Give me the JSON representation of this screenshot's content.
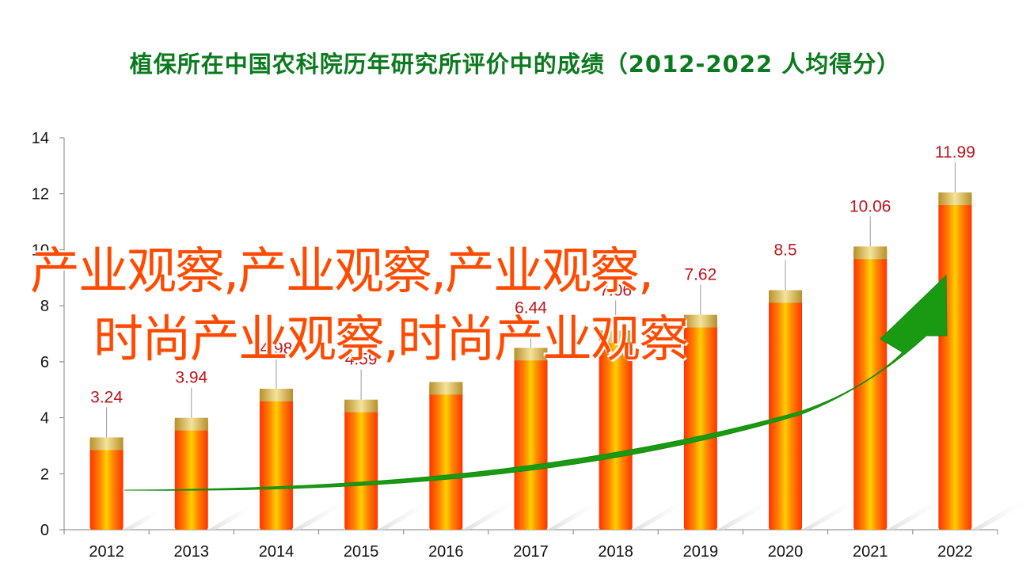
{
  "colors": {
    "title": "#0b7a1e",
    "bar_main": "#ff3a00",
    "bar_highlight": "#ffc400",
    "cap": "#d8b23a",
    "data_label": "#c0141b",
    "trend_arrow": "#1a9a12",
    "overlay_text": "#ff4a00"
  },
  "overlay_text": {
    "line1": "产业观察,产业观察,产业观察,",
    "line2": "时尚产业观察,时尚产业观察"
  },
  "chart_data": {
    "type": "bar",
    "title": "植保所在中国农科院历年研究所评价中的成绩（2012-2022  人均得分）",
    "categories": [
      "2012",
      "2013",
      "2014",
      "2015",
      "2016",
      "2017",
      "2018",
      "2019",
      "2020",
      "2021",
      "2022"
    ],
    "values": [
      3.24,
      3.94,
      4.98,
      4.59,
      5.22,
      6.44,
      7.06,
      7.62,
      8.5,
      10.06,
      11.99
    ],
    "data_labels": [
      "3.24",
      "3.94",
      "4.98",
      "4.59",
      "",
      "6.44",
      "7.06",
      "7.62",
      "8.5",
      "10.06",
      "11.99"
    ],
    "ylim": [
      0,
      14
    ],
    "yticks": [
      "0",
      "2",
      "4",
      "6",
      "8",
      "10",
      "12",
      "14"
    ],
    "xlabel": "",
    "ylabel": "",
    "grid": false,
    "legend": "none",
    "trend_arrow": true
  }
}
